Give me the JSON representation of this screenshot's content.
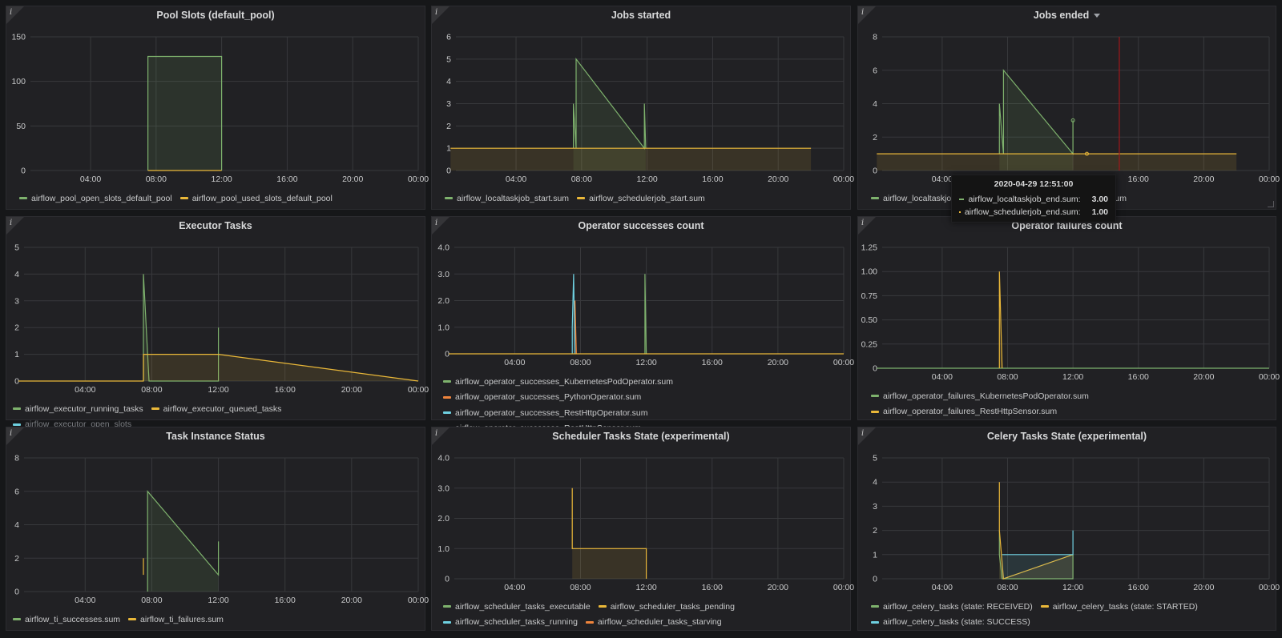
{
  "theme": {
    "bg": "#161719",
    "panel": "#212124",
    "grid": "#38393c",
    "axis": "#c8c9ca",
    "green": "#7eb26d",
    "yellow": "#eab839",
    "cyan": "#6ed0e0",
    "orange": "#ef843c",
    "red": "#ff0000"
  },
  "info_icon": "i",
  "x_ticks": [
    "04:00",
    "08:00",
    "12:00",
    "16:00",
    "20:00",
    "00:00"
  ],
  "panels": [
    {
      "id": "pool",
      "title": "Pool Slots (default_pool)",
      "y_ticks": [
        "150",
        "100",
        "50",
        "0"
      ],
      "legend": [
        {
          "label": "airflow_pool_open_slots_default_pool",
          "color": "#7eb26d"
        },
        {
          "label": "airflow_pool_used_slots_default_pool",
          "color": "#eab839"
        }
      ]
    },
    {
      "id": "jobs_started",
      "title": "Jobs started",
      "y_ticks": [
        "6",
        "5",
        "4",
        "3",
        "2",
        "1",
        "0"
      ],
      "legend": [
        {
          "label": "airflow_localtaskjob_start.sum",
          "color": "#7eb26d"
        },
        {
          "label": "airflow_schedulerjob_start.sum",
          "color": "#eab839"
        }
      ]
    },
    {
      "id": "jobs_ended",
      "title": "Jobs ended",
      "has_dropdown": true,
      "y_ticks": [
        "8",
        "6",
        "4",
        "2",
        "0"
      ],
      "legend": [
        {
          "label": "airflow_localtaskjob_end.sum",
          "color": "#7eb26d"
        },
        {
          "label": "airflow_schedulerjob_end.sum",
          "color": "#eab839"
        }
      ]
    },
    {
      "id": "executor",
      "title": "Executor Tasks",
      "y_ticks": [
        "5",
        "4",
        "3",
        "2",
        "1",
        "0"
      ],
      "legend": [
        {
          "label": "airflow_executor_running_tasks",
          "color": "#7eb26d"
        },
        {
          "label": "airflow_executor_queued_tasks",
          "color": "#eab839"
        },
        {
          "label": "airflow_executor_open_slots",
          "color": "#6ed0e0",
          "dim": true
        }
      ]
    },
    {
      "id": "op_success",
      "title": "Operator successes count",
      "y_ticks": [
        "4.0",
        "3.0",
        "2.0",
        "1.0",
        "0"
      ],
      "legend": [
        {
          "label": "airflow_operator_successes_KubernetesPodOperator.sum",
          "color": "#7eb26d"
        },
        {
          "label": "airflow_operator_successes_PythonOperator.sum",
          "color": "#ef843c"
        },
        {
          "label": "airflow_operator_successes_RestHttpOperator.sum",
          "color": "#6ed0e0"
        },
        {
          "label": "airflow_operator_successes_RestHttpSensor.sum",
          "color": "#eab839"
        }
      ]
    },
    {
      "id": "op_fail",
      "title": "Operator failures count",
      "y_ticks": [
        "1.25",
        "1.00",
        "0.75",
        "0.50",
        "0.25",
        "0"
      ],
      "legend": [
        {
          "label": "airflow_operator_failures_KubernetesPodOperator.sum",
          "color": "#7eb26d"
        },
        {
          "label": "airflow_operator_failures_RestHttpSensor.sum",
          "color": "#eab839"
        }
      ]
    },
    {
      "id": "ti_status",
      "title": "Task Instance Status",
      "y_ticks": [
        "8",
        "6",
        "4",
        "2",
        "0"
      ],
      "legend": [
        {
          "label": "airflow_ti_successes.sum",
          "color": "#7eb26d"
        },
        {
          "label": "airflow_ti_failures.sum",
          "color": "#eab839"
        }
      ]
    },
    {
      "id": "sched_tasks",
      "title": "Scheduler Tasks State (experimental)",
      "y_ticks": [
        "4.0",
        "3.0",
        "2.0",
        "1.0",
        "0"
      ],
      "legend": [
        {
          "label": "airflow_scheduler_tasks_executable",
          "color": "#7eb26d"
        },
        {
          "label": "airflow_scheduler_tasks_pending",
          "color": "#eab839"
        },
        {
          "label": "airflow_scheduler_tasks_running",
          "color": "#6ed0e0"
        },
        {
          "label": "airflow_scheduler_tasks_starving",
          "color": "#ef843c"
        }
      ]
    },
    {
      "id": "celery",
      "title": "Celery Tasks State (experimental)",
      "y_ticks": [
        "5",
        "4",
        "3",
        "2",
        "1",
        "0"
      ],
      "legend": [
        {
          "label": "airflow_celery_tasks (state: RECEIVED)",
          "color": "#7eb26d"
        },
        {
          "label": "airflow_celery_tasks (state: STARTED)",
          "color": "#eab839"
        },
        {
          "label": "airflow_celery_tasks (state: SUCCESS)",
          "color": "#6ed0e0"
        }
      ]
    }
  ],
  "tooltip": {
    "title": "2020-04-29 12:51:00",
    "rows": [
      {
        "label": "airflow_localtaskjob_end.sum:",
        "value": "3.00",
        "color": "#7eb26d"
      },
      {
        "label": "airflow_schedulerjob_end.sum:",
        "value": "1.00",
        "color": "#eab839"
      }
    ]
  },
  "chart_data": [
    {
      "panel": "pool",
      "type": "area",
      "ylim": [
        0,
        150
      ],
      "series": [
        {
          "name": "airflow_pool_open_slots_default_pool",
          "points": [
            [
              "07:30",
              0
            ],
            [
              "07:30",
              128
            ],
            [
              "12:00",
              128
            ],
            [
              "12:00",
              0
            ]
          ]
        },
        {
          "name": "airflow_pool_used_slots_default_pool",
          "points": [
            [
              "07:30",
              0
            ],
            [
              "12:00",
              0
            ]
          ]
        }
      ]
    },
    {
      "panel": "jobs_started",
      "type": "line",
      "ylim": [
        0,
        6
      ],
      "series": [
        {
          "name": "airflow_localtaskjob_start.sum",
          "points": [
            [
              "07:30",
              1
            ],
            [
              "07:30",
              3
            ],
            [
              "07:40",
              1
            ],
            [
              "07:40",
              5
            ],
            [
              "11:50",
              1
            ],
            [
              "11:50",
              3
            ],
            [
              "11:55",
              1
            ]
          ]
        },
        {
          "name": "airflow_schedulerjob_start.sum",
          "points": [
            [
              "00:00",
              1
            ],
            [
              "22:00",
              1
            ]
          ]
        }
      ]
    },
    {
      "panel": "jobs_ended",
      "type": "line",
      "ylim": [
        0,
        8
      ],
      "series": [
        {
          "name": "airflow_localtaskjob_end.sum",
          "points": [
            [
              "07:30",
              1
            ],
            [
              "07:30",
              4
            ],
            [
              "07:45",
              1
            ],
            [
              "07:45",
              6
            ],
            [
              "12:00",
              1
            ],
            [
              "12:00",
              3
            ]
          ]
        },
        {
          "name": "airflow_schedulerjob_end.sum",
          "points": [
            [
              "00:00",
              1
            ],
            [
              "22:00",
              1
            ]
          ]
        }
      ]
    },
    {
      "panel": "executor",
      "type": "line",
      "ylim": [
        0,
        5
      ],
      "series": [
        {
          "name": "airflow_executor_running_tasks",
          "points": [
            [
              "07:30",
              0
            ],
            [
              "07:30",
              4
            ],
            [
              "07:35",
              3
            ],
            [
              "07:40",
              2
            ],
            [
              "07:50",
              0
            ],
            [
              "12:00",
              0
            ],
            [
              "12:00",
              2
            ]
          ]
        },
        {
          "name": "airflow_executor_queued_tasks",
          "points": [
            [
              "00:00",
              0
            ],
            [
              "07:30",
              0
            ],
            [
              "07:30",
              1
            ],
            [
              "12:00",
              1
            ],
            [
              "24:00",
              0
            ]
          ]
        },
        {
          "name": "airflow_executor_open_slots",
          "points": []
        }
      ]
    },
    {
      "panel": "op_success",
      "type": "line",
      "ylim": [
        0,
        4
      ],
      "series": [
        {
          "name": "airflow_operator_successes_KubernetesPodOperator.sum",
          "points": [
            [
              "11:55",
              0
            ],
            [
              "11:55",
              3
            ],
            [
              "12:00",
              0
            ]
          ]
        },
        {
          "name": "airflow_operator_successes_PythonOperator.sum",
          "points": [
            [
              "07:40",
              0
            ],
            [
              "07:40",
              2
            ],
            [
              "07:45",
              0
            ]
          ]
        },
        {
          "name": "airflow_operator_successes_RestHttpOperator.sum",
          "points": [
            [
              "07:30",
              0
            ],
            [
              "07:30",
              1
            ],
            [
              "07:35",
              3
            ],
            [
              "07:40",
              0
            ]
          ]
        },
        {
          "name": "airflow_operator_successes_RestHttpSensor.sum",
          "points": [
            [
              "00:00",
              0
            ],
            [
              "24:00",
              0
            ]
          ]
        }
      ]
    },
    {
      "panel": "op_fail",
      "type": "line",
      "ylim": [
        0,
        1.25
      ],
      "series": [
        {
          "name": "airflow_operator_failures_KubernetesPodOperator.sum",
          "points": [
            [
              "00:00",
              0
            ],
            [
              "24:00",
              0
            ]
          ]
        },
        {
          "name": "airflow_operator_failures_RestHttpSensor.sum",
          "points": [
            [
              "07:30",
              0
            ],
            [
              "07:30",
              1
            ],
            [
              "07:40",
              0
            ]
          ]
        }
      ]
    },
    {
      "panel": "ti_status",
      "type": "area",
      "ylim": [
        0,
        8
      ],
      "series": [
        {
          "name": "airflow_ti_successes.sum",
          "points": [
            [
              "07:45",
              0
            ],
            [
              "07:45",
              6
            ],
            [
              "12:00",
              1
            ],
            [
              "12:00",
              3
            ]
          ]
        },
        {
          "name": "airflow_ti_failures.sum",
          "points": [
            [
              "07:30",
              1
            ],
            [
              "07:30",
              2
            ]
          ]
        }
      ]
    },
    {
      "panel": "sched_tasks",
      "type": "area",
      "ylim": [
        0,
        4
      ],
      "series": [
        {
          "name": "airflow_scheduler_tasks_executable",
          "points": []
        },
        {
          "name": "airflow_scheduler_tasks_pending",
          "points": [
            [
              "07:30",
              3
            ],
            [
              "07:30",
              1
            ],
            [
              "12:00",
              1
            ],
            [
              "12:00",
              0
            ]
          ]
        },
        {
          "name": "airflow_scheduler_tasks_running",
          "points": []
        },
        {
          "name": "airflow_scheduler_tasks_starving",
          "points": []
        }
      ]
    },
    {
      "panel": "celery",
      "type": "line",
      "ylim": [
        0,
        5
      ],
      "series": [
        {
          "name": "airflow_celery_tasks (state: RECEIVED)",
          "points": [
            [
              "07:30",
              2
            ],
            [
              "07:30",
              1
            ],
            [
              "07:40",
              0
            ],
            [
              "12:00",
              0
            ],
            [
              "12:00",
              1
            ]
          ]
        },
        {
          "name": "airflow_celery_tasks (state: STARTED)",
          "points": [
            [
              "07:30",
              4
            ],
            [
              "07:30",
              2
            ],
            [
              "07:45",
              0
            ],
            [
              "12:00",
              1
            ]
          ]
        },
        {
          "name": "airflow_celery_tasks (state: SUCCESS)",
          "points": [
            [
              "07:40",
              1
            ],
            [
              "12:00",
              1
            ],
            [
              "12:00",
              2
            ]
          ]
        }
      ]
    }
  ]
}
